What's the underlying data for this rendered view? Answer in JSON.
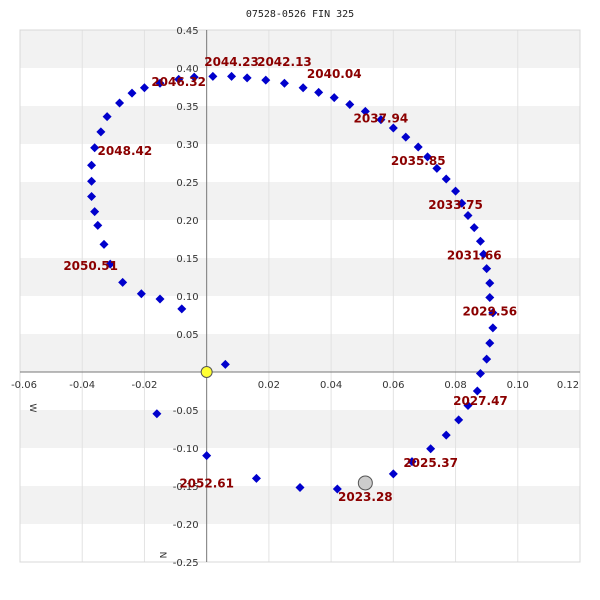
{
  "chart_data": {
    "type": "scatter",
    "title": "07528-0526 FIN 325",
    "xlabel": "W",
    "ylabel": "N",
    "xlim": [
      -0.06,
      0.12
    ],
    "ylim": [
      -0.25,
      0.45
    ],
    "grid": true,
    "x_ticks": [
      "-0.06",
      "-0.04",
      "-0.02",
      "0.02",
      "0.04",
      "0.06",
      "0.08",
      "0.10",
      "0.12"
    ],
    "x_tick_values": [
      -0.06,
      -0.04,
      -0.02,
      0.02,
      0.04,
      0.06,
      0.08,
      0.1,
      0.12
    ],
    "y_ticks": [
      "0.45",
      "0.40",
      "0.35",
      "0.30",
      "0.25",
      "0.20",
      "0.15",
      "0.10",
      "0.05",
      "-0.05",
      "-0.10",
      "-0.15",
      "-0.20",
      "-0.25"
    ],
    "y_tick_values": [
      0.45,
      0.4,
      0.35,
      0.3,
      0.25,
      0.2,
      0.15,
      0.1,
      0.05,
      -0.05,
      -0.1,
      -0.15,
      -0.2,
      -0.25
    ],
    "colors": {
      "point": "#0000cc",
      "label": "#8b0000",
      "primary": "#ffff33",
      "current": "#cccccc"
    },
    "primary": {
      "x": 0.0,
      "y": 0.0
    },
    "current": {
      "x": 0.051,
      "y": -0.146
    },
    "points": [
      [
        0.051,
        -0.146
      ],
      [
        0.06,
        -0.134
      ],
      [
        0.066,
        -0.118
      ],
      [
        0.072,
        -0.101
      ],
      [
        0.077,
        -0.083
      ],
      [
        0.081,
        -0.063
      ],
      [
        0.084,
        -0.044
      ],
      [
        0.087,
        -0.025
      ],
      [
        0.088,
        -0.002
      ],
      [
        0.09,
        0.017
      ],
      [
        0.091,
        0.038
      ],
      [
        0.092,
        0.058
      ],
      [
        0.092,
        0.078
      ],
      [
        0.091,
        0.098
      ],
      [
        0.091,
        0.117
      ],
      [
        0.09,
        0.136
      ],
      [
        0.089,
        0.155
      ],
      [
        0.088,
        0.172
      ],
      [
        0.086,
        0.19
      ],
      [
        0.084,
        0.206
      ],
      [
        0.082,
        0.222
      ],
      [
        0.08,
        0.238
      ],
      [
        0.077,
        0.254
      ],
      [
        0.074,
        0.268
      ],
      [
        0.071,
        0.283
      ],
      [
        0.068,
        0.296
      ],
      [
        0.064,
        0.309
      ],
      [
        0.06,
        0.321
      ],
      [
        0.056,
        0.332
      ],
      [
        0.051,
        0.343
      ],
      [
        0.046,
        0.352
      ],
      [
        0.041,
        0.361
      ],
      [
        0.036,
        0.368
      ],
      [
        0.031,
        0.374
      ],
      [
        0.025,
        0.38
      ],
      [
        0.019,
        0.384
      ],
      [
        0.013,
        0.387
      ],
      [
        0.008,
        0.389
      ],
      [
        0.002,
        0.389
      ],
      [
        -0.004,
        0.388
      ],
      [
        -0.009,
        0.385
      ],
      [
        -0.015,
        0.38
      ],
      [
        -0.02,
        0.374
      ],
      [
        -0.024,
        0.367
      ],
      [
        -0.028,
        0.354
      ],
      [
        -0.032,
        0.336
      ],
      [
        -0.034,
        0.316
      ],
      [
        -0.036,
        0.295
      ],
      [
        -0.037,
        0.272
      ],
      [
        -0.037,
        0.251
      ],
      [
        -0.037,
        0.231
      ],
      [
        -0.036,
        0.211
      ],
      [
        -0.035,
        0.193
      ],
      [
        -0.033,
        0.168
      ],
      [
        -0.031,
        0.142
      ],
      [
        -0.027,
        0.118
      ],
      [
        -0.021,
        0.103
      ],
      [
        -0.015,
        0.096
      ],
      [
        -0.008,
        0.083
      ],
      [
        0.006,
        0.01
      ],
      [
        -0.016,
        -0.055
      ],
      [
        0.0,
        -0.11
      ],
      [
        0.016,
        -0.14
      ],
      [
        0.03,
        -0.152
      ],
      [
        0.042,
        -0.154
      ]
    ],
    "year_labels": [
      {
        "text": "2023.28",
        "x": 0.051,
        "y": -0.146
      },
      {
        "text": "2025.37",
        "x": 0.072,
        "y": -0.101
      },
      {
        "text": "2027.47",
        "x": 0.088,
        "y": -0.02
      },
      {
        "text": "2029.56",
        "x": 0.091,
        "y": 0.098
      },
      {
        "text": "2031.66",
        "x": 0.086,
        "y": 0.172
      },
      {
        "text": "2033.75",
        "x": 0.08,
        "y": 0.238
      },
      {
        "text": "2035.85",
        "x": 0.068,
        "y": 0.296
      },
      {
        "text": "2037.94",
        "x": 0.056,
        "y": 0.352
      },
      {
        "text": "2040.04",
        "x": 0.041,
        "y": 0.384
      },
      {
        "text": "2042.13",
        "x": 0.025,
        "y": 0.4
      },
      {
        "text": "2044.23",
        "x": 0.008,
        "y": 0.4
      },
      {
        "text": "2046.32",
        "x": -0.009,
        "y": 0.374
      },
      {
        "text": "2048.42",
        "x": -0.025,
        "y": 0.309
      },
      {
        "text": "2050.51",
        "x": -0.036,
        "y": 0.158
      },
      {
        "text": "2052.61",
        "x": 0.0,
        "y": -0.128
      }
    ]
  }
}
